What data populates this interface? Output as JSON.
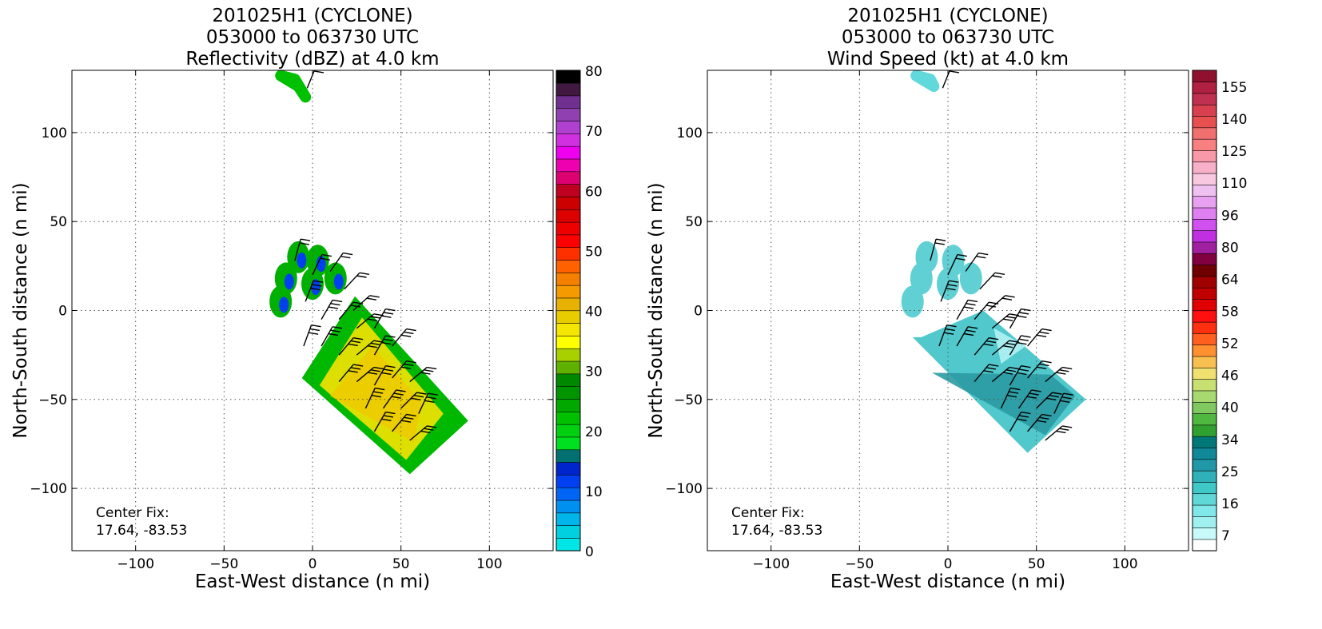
{
  "chart_data": [
    {
      "type": "heatmap",
      "title_lines": [
        "201025H1 (CYCLONE)",
        "053000 to 063730 UTC",
        "Reflectivity (dBZ) at 4.0 km"
      ],
      "xlabel": "East-West distance (n mi)",
      "ylabel": "North-South distance (n mi)",
      "xlim": [
        -136,
        136
      ],
      "ylim": [
        -135,
        135
      ],
      "x_ticks": [
        -100,
        -50,
        0,
        50,
        100
      ],
      "y_ticks": [
        -100,
        -50,
        0,
        50,
        100
      ],
      "x_tick_labels": [
        "−100",
        "−50",
        "0",
        "50",
        "100"
      ],
      "y_tick_labels": [
        "−100",
        "−50",
        "0",
        "50",
        "100"
      ],
      "grid": true,
      "annotation": [
        "Center Fix:",
        "17.64, -83.53"
      ],
      "colorbar": {
        "min": 0,
        "max": 80,
        "tick_labels": [
          "0",
          "10",
          "20",
          "30",
          "40",
          "50",
          "60",
          "70",
          "80"
        ],
        "colors": [
          "#00e5e5",
          "#00d0e0",
          "#00b5ea",
          "#0090f0",
          "#0065f5",
          "#0040f0",
          "#0025cc",
          "#007070",
          "#00e020",
          "#00d010",
          "#00c000",
          "#00a800",
          "#009500",
          "#008800",
          "#60b000",
          "#a8d000",
          "#ffff00",
          "#f5e600",
          "#e8cc00",
          "#e8b000",
          "#f59a00",
          "#f58000",
          "#ff6000",
          "#ff3000",
          "#ff0000",
          "#ee0000",
          "#dd0000",
          "#cc0000",
          "#c00020",
          "#dd0070",
          "#ee00b0",
          "#ee00ee",
          "#d030e0",
          "#b040d0",
          "#9040b0",
          "#703090",
          "#401840",
          "#000000"
        ]
      },
      "field": {
        "kind": "reflectivity",
        "swath_corners_xy": [
          [
            -6,
            -38
          ],
          [
            24,
            8
          ],
          [
            88,
            -62
          ],
          [
            55,
            -92
          ]
        ],
        "upper_blobs_xy": [
          [
            -8,
            30
          ],
          [
            3,
            28
          ],
          [
            13,
            18
          ],
          [
            -15,
            18
          ],
          [
            0,
            15
          ],
          [
            -18,
            5
          ]
        ],
        "top_echo_xy": [
          [
            -18,
            132
          ],
          [
            -8,
            126
          ],
          [
            -4,
            120
          ]
        ]
      },
      "wind_barbs_xy": [
        [
          -3,
          125,
          20,
          20
        ],
        [
          -10,
          28,
          20,
          25
        ],
        [
          0,
          20,
          25,
          25
        ],
        [
          10,
          22,
          20,
          25
        ],
        [
          18,
          12,
          25,
          25
        ],
        [
          23,
          0,
          20,
          25
        ],
        [
          -4,
          5,
          30,
          30
        ],
        [
          5,
          -5,
          30,
          30
        ],
        [
          15,
          -5,
          25,
          30
        ],
        [
          25,
          -10,
          30,
          30
        ],
        [
          35,
          -10,
          30,
          35
        ],
        [
          -5,
          -20,
          30,
          30
        ],
        [
          5,
          -20,
          30,
          30
        ],
        [
          15,
          -25,
          30,
          30
        ],
        [
          25,
          -25,
          35,
          35
        ],
        [
          35,
          -25,
          35,
          35
        ],
        [
          45,
          -20,
          30,
          30
        ],
        [
          15,
          -40,
          35,
          35
        ],
        [
          25,
          -40,
          35,
          35
        ],
        [
          35,
          -42,
          35,
          35
        ],
        [
          45,
          -38,
          35,
          35
        ],
        [
          55,
          -40,
          35,
          35
        ],
        [
          30,
          -55,
          35,
          35
        ],
        [
          40,
          -55,
          40,
          35
        ],
        [
          50,
          -55,
          35,
          35
        ],
        [
          60,
          -58,
          35,
          35
        ],
        [
          35,
          -68,
          40,
          35
        ],
        [
          45,
          -68,
          35,
          40
        ],
        [
          55,
          -73,
          35,
          35
        ]
      ]
    },
    {
      "type": "heatmap",
      "title_lines": [
        "201025H1 (CYCLONE)",
        "053000 to 063730 UTC",
        "Wind Speed (kt) at 4.0 km"
      ],
      "xlabel": "East-West distance (n mi)",
      "ylabel": "North-South distance (n mi)",
      "xlim": [
        -136,
        136
      ],
      "ylim": [
        -135,
        135
      ],
      "x_ticks": [
        -100,
        -50,
        0,
        50,
        100
      ],
      "y_ticks": [
        -100,
        -50,
        0,
        50,
        100
      ],
      "x_tick_labels": [
        "−100",
        "−50",
        "0",
        "50",
        "100"
      ],
      "y_tick_labels": [
        "−100",
        "−50",
        "0",
        "50",
        "100"
      ],
      "grid": true,
      "annotation": [
        "Center Fix:",
        "17.64, -83.53"
      ],
      "colorbar": {
        "min": 7,
        "max": 160,
        "labeled_ticks": [
          {
            "label": "7",
            "value": 7
          },
          {
            "label": "16",
            "value": 16
          },
          {
            "label": "25",
            "value": 25
          },
          {
            "label": "34",
            "value": 34
          },
          {
            "label": "40",
            "value": 40
          },
          {
            "label": "46",
            "value": 46
          },
          {
            "label": "52",
            "value": 52
          },
          {
            "label": "58",
            "value": 58
          },
          {
            "label": "64",
            "value": 64
          },
          {
            "label": "80",
            "value": 80
          },
          {
            "label": "96",
            "value": 96
          },
          {
            "label": "110",
            "value": 110
          },
          {
            "label": "125",
            "value": 125
          },
          {
            "label": "140",
            "value": 140
          },
          {
            "label": "155",
            "value": 155
          }
        ],
        "colors": [
          "#ffffff",
          "#c8fafa",
          "#a0f0f0",
          "#80e8e8",
          "#60d8d8",
          "#40c8c8",
          "#30b0b8",
          "#2098a8",
          "#108898",
          "#007878",
          "#30a030",
          "#50b840",
          "#80c860",
          "#a8d870",
          "#c8e070",
          "#f0e070",
          "#f8c050",
          "#ff9030",
          "#ff6020",
          "#ff3010",
          "#ff1010",
          "#e00000",
          "#c00000",
          "#a00000",
          "#700000",
          "#800040",
          "#a020a0",
          "#c030e0",
          "#d050f0",
          "#e080f0",
          "#e8a0f0",
          "#f0c0f0",
          "#f8c8e0",
          "#f8b0c8",
          "#f898a8",
          "#f88080",
          "#f07070",
          "#e85050",
          "#d84050",
          "#c03050",
          "#b02040",
          "#901030"
        ]
      },
      "field": {
        "kind": "windspeed",
        "swath_corners_xy": [
          [
            -15,
            -15
          ],
          [
            20,
            0
          ],
          [
            78,
            -50
          ],
          [
            45,
            -80
          ],
          [
            -20,
            -15
          ]
        ],
        "upper_blobs_xy": [
          [
            -12,
            30
          ],
          [
            3,
            28
          ],
          [
            13,
            18
          ],
          [
            -15,
            18
          ],
          [
            0,
            15
          ],
          [
            -20,
            5
          ]
        ],
        "top_echo_xy": [
          [
            -18,
            132
          ],
          [
            -8,
            126
          ]
        ]
      },
      "wind_barbs_xy": [
        [
          -3,
          125,
          20,
          20
        ],
        [
          -10,
          28,
          20,
          25
        ],
        [
          0,
          20,
          25,
          25
        ],
        [
          10,
          22,
          20,
          25
        ],
        [
          18,
          12,
          25,
          25
        ],
        [
          23,
          0,
          20,
          25
        ],
        [
          -4,
          5,
          30,
          30
        ],
        [
          5,
          -5,
          30,
          30
        ],
        [
          15,
          -5,
          25,
          30
        ],
        [
          25,
          -10,
          30,
          30
        ],
        [
          35,
          -10,
          30,
          35
        ],
        [
          -5,
          -20,
          30,
          30
        ],
        [
          5,
          -20,
          30,
          30
        ],
        [
          15,
          -25,
          30,
          30
        ],
        [
          25,
          -25,
          35,
          35
        ],
        [
          35,
          -25,
          35,
          35
        ],
        [
          45,
          -20,
          30,
          30
        ],
        [
          15,
          -40,
          35,
          35
        ],
        [
          25,
          -40,
          35,
          35
        ],
        [
          35,
          -42,
          35,
          35
        ],
        [
          45,
          -38,
          35,
          35
        ],
        [
          55,
          -40,
          35,
          35
        ],
        [
          30,
          -55,
          35,
          35
        ],
        [
          40,
          -55,
          40,
          35
        ],
        [
          50,
          -55,
          35,
          35
        ],
        [
          60,
          -58,
          35,
          35
        ],
        [
          35,
          -68,
          40,
          35
        ],
        [
          45,
          -68,
          35,
          40
        ],
        [
          55,
          -73,
          35,
          35
        ]
      ]
    }
  ]
}
